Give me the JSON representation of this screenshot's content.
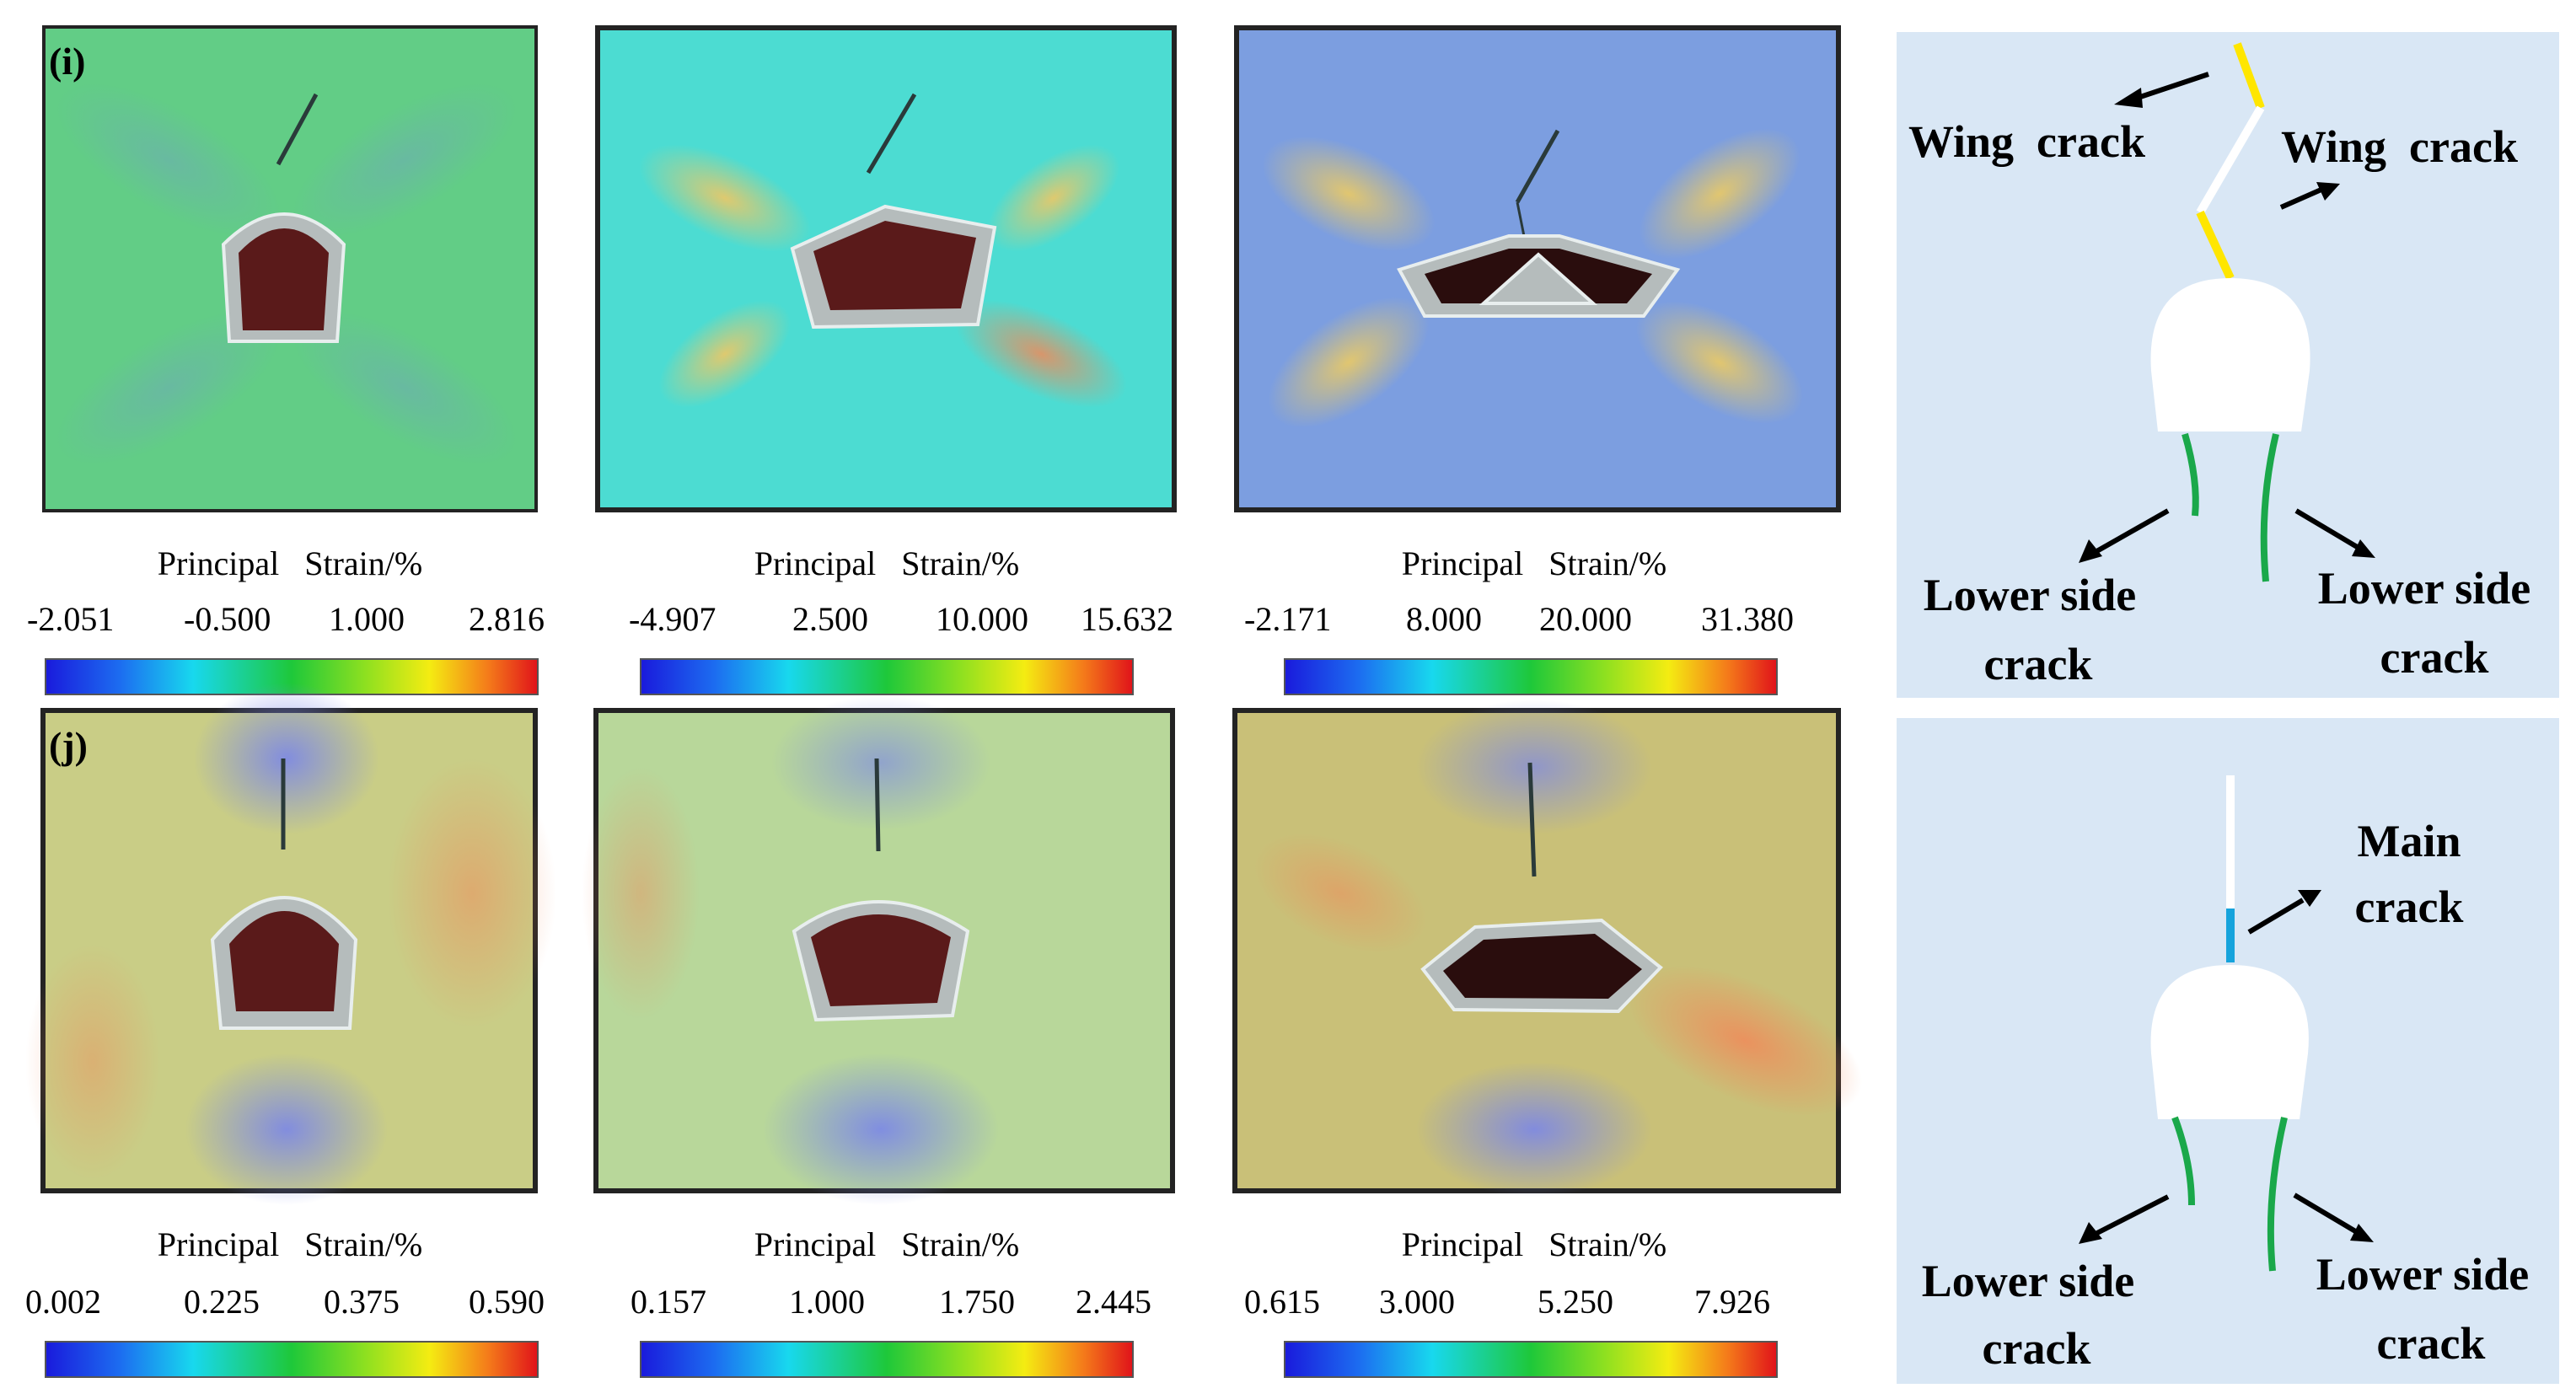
{
  "rows": [
    {
      "label": "(i)",
      "panels": [
        {
          "title": "Principal   Strain/%",
          "ticks": [
            "-2.051",
            "-0.500",
            "1.000",
            "2.816"
          ],
          "bg": "#62cd86"
        },
        {
          "title": "Principal   Strain/%",
          "ticks": [
            "-4.907",
            "2.500",
            "10.000",
            "15.632"
          ],
          "bg": "#4cdcd2"
        },
        {
          "title": "Principal   Strain/%",
          "ticks": [
            "-2.171",
            "8.000",
            "20.000",
            "31.380"
          ],
          "bg": "#7c9ee0"
        }
      ]
    },
    {
      "label": "(j)",
      "panels": [
        {
          "title": "Principal   Strain/%",
          "ticks": [
            "0.002",
            "0.225",
            "0.375",
            "0.590"
          ],
          "bg": "#c9cd86"
        },
        {
          "title": "Principal   Strain/%",
          "ticks": [
            "0.157",
            "1.000",
            "1.750",
            "2.445"
          ],
          "bg": "#b8d79a"
        },
        {
          "title": "Principal   Strain/%",
          "ticks": [
            "0.615",
            "3.000",
            "5.250",
            "7.926"
          ],
          "bg": "#c9c078"
        }
      ]
    }
  ],
  "schematic_top": {
    "wing_left": "Wing  crack",
    "wing_right": "Wing  crack",
    "lower_left_1": "Lower side",
    "lower_left_2": "crack",
    "lower_right_1": "Lower side",
    "lower_right_2": "crack"
  },
  "schematic_bottom": {
    "main_1": "Main",
    "main_2": "crack",
    "lower_left_1": "Lower side",
    "lower_left_2": "crack",
    "lower_right_1": "Lower side",
    "lower_right_2": "crack"
  },
  "colors": {
    "schematic_bg": "#d9e7f5",
    "wing_crack": "#ffe600",
    "side_crack": "#1aa84a",
    "main_crack": "#16a3dc",
    "cavity": "#5a1a1a"
  }
}
